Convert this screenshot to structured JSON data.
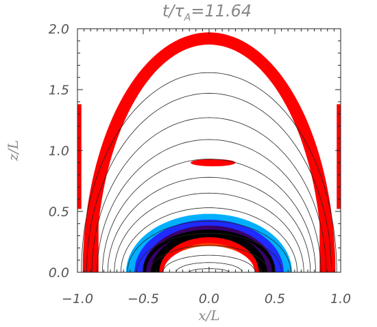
{
  "chart_data": {
    "type": "contour",
    "title": "t/τ",
    "title_sub": "A",
    "title_value": "=11.64",
    "xlabel": "x/L",
    "ylabel": "z/L",
    "xlim": [
      -1.0,
      1.0
    ],
    "ylim": [
      0.0,
      2.0
    ],
    "x_ticks": [
      -1.0,
      -0.5,
      0.0,
      0.5,
      1.0
    ],
    "x_tick_labels": [
      "−1.0",
      "−0.5",
      "0.0",
      "0.5",
      "1.0"
    ],
    "y_ticks": [
      0.0,
      0.5,
      1.0,
      1.5,
      2.0
    ],
    "y_tick_labels": [
      "0.0",
      "0.5",
      "1.0",
      "1.5",
      "2.0"
    ],
    "field_lines": {
      "color": "#222222",
      "arcs": [
        {
          "half_width": 0.15,
          "height": 0.03
        },
        {
          "half_width": 0.25,
          "height": 0.08
        },
        {
          "half_width": 0.35,
          "height": 0.14
        },
        {
          "half_width": 0.45,
          "height": 0.22
        },
        {
          "half_width": 0.55,
          "height": 0.32
        },
        {
          "half_width": 0.62,
          "height": 0.42
        },
        {
          "half_width": 0.67,
          "height": 0.53
        },
        {
          "half_width": 0.72,
          "height": 0.65
        },
        {
          "half_width": 0.77,
          "height": 0.78
        },
        {
          "half_width": 0.81,
          "height": 0.93
        },
        {
          "half_width": 0.85,
          "height": 1.09
        },
        {
          "half_width": 0.89,
          "height": 1.27
        },
        {
          "half_width": 0.93,
          "height": 1.47
        },
        {
          "half_width": 0.97,
          "height": 1.64
        }
      ]
    },
    "current_regions": {
      "color": "#ff0000",
      "outer_arch": {
        "x_peak": 0.0,
        "z_top": 1.97,
        "thickness": 0.1
      },
      "blob": {
        "x_center": 0.03,
        "z_center": 0.9,
        "half_width": 0.17,
        "half_height": 0.03
      },
      "side_strips": [
        {
          "side": "left",
          "x_min": -1.0,
          "x_max": -0.97,
          "z_min": 0.52,
          "z_max": 1.38
        },
        {
          "side": "right",
          "x_min": 0.97,
          "x_max": 1.0,
          "z_min": 0.52,
          "z_max": 1.38
        },
        {
          "side": "left-lower",
          "x_min": -0.92,
          "x_max": -0.84,
          "z_min": 0.0,
          "z_max": 0.43
        },
        {
          "side": "right-lower",
          "x_min": 0.84,
          "x_max": 0.92,
          "z_min": 0.0,
          "z_max": 0.43
        }
      ]
    },
    "core_colormap": [
      "#000000",
      "#3a006a",
      "#1f2bff",
      "#00b0ff",
      "#00d090",
      "#40ff20",
      "#e8ff00",
      "#ffb000",
      "#ff4000",
      "#ff0000"
    ],
    "core_region": {
      "half_width": 0.63,
      "height": 0.48
    }
  }
}
